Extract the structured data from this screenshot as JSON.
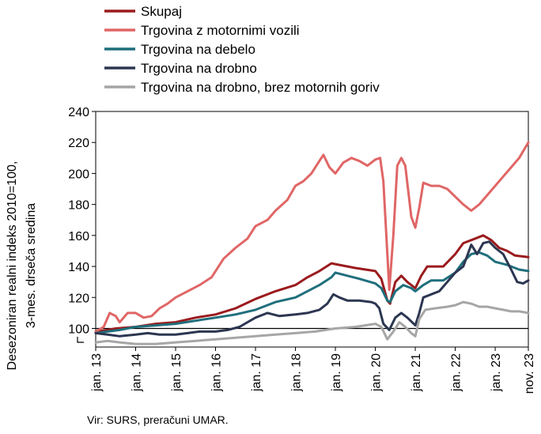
{
  "source_note": "Vir: SURS, preračuni UMAR.",
  "chart_data": {
    "type": "line",
    "ylabel_lines": [
      "Desezoniran realni indeks 2010=100,",
      "3-mes. drseča sredina"
    ],
    "ylim": [
      88,
      240
    ],
    "yticks": [
      100,
      120,
      140,
      160,
      180,
      200,
      220,
      240
    ],
    "baseline": 100,
    "xlim": [
      2013.0,
      2023.83
    ],
    "xticks": [
      {
        "x": 2013.0,
        "label": "jan. 13"
      },
      {
        "x": 2014.0,
        "label": "jan. 14"
      },
      {
        "x": 2015.0,
        "label": "jan. 15"
      },
      {
        "x": 2016.0,
        "label": "jan. 16"
      },
      {
        "x": 2017.0,
        "label": "jan. 17"
      },
      {
        "x": 2018.0,
        "label": "jan. 18"
      },
      {
        "x": 2019.0,
        "label": "jan. 19"
      },
      {
        "x": 2020.0,
        "label": "jan. 20"
      },
      {
        "x": 2021.0,
        "label": "jan. 21"
      },
      {
        "x": 2022.0,
        "label": "jan. 22"
      },
      {
        "x": 2023.0,
        "label": "jan. 23"
      },
      {
        "x": 2023.83,
        "label": "nov. 23"
      }
    ],
    "legend_position": "top-left",
    "grid": false,
    "series": [
      {
        "name": "Skupaj",
        "color": "#9b1b1e",
        "width": 3,
        "points": [
          [
            2013.0,
            98
          ],
          [
            2013.3,
            99
          ],
          [
            2013.5,
            100
          ],
          [
            2014.0,
            101
          ],
          [
            2014.5,
            103
          ],
          [
            2015.0,
            104
          ],
          [
            2015.5,
            107
          ],
          [
            2016.0,
            109
          ],
          [
            2016.5,
            113
          ],
          [
            2017.0,
            119
          ],
          [
            2017.5,
            124
          ],
          [
            2018.0,
            128
          ],
          [
            2018.3,
            133
          ],
          [
            2018.6,
            137
          ],
          [
            2018.9,
            142
          ],
          [
            2019.1,
            141
          ],
          [
            2019.5,
            139
          ],
          [
            2020.0,
            137
          ],
          [
            2020.15,
            132
          ],
          [
            2020.3,
            118
          ],
          [
            2020.37,
            116
          ],
          [
            2020.5,
            130
          ],
          [
            2020.65,
            134
          ],
          [
            2020.8,
            130
          ],
          [
            2021.0,
            126
          ],
          [
            2021.15,
            134
          ],
          [
            2021.3,
            140
          ],
          [
            2021.7,
            140
          ],
          [
            2022.0,
            148
          ],
          [
            2022.2,
            155
          ],
          [
            2022.5,
            158
          ],
          [
            2022.7,
            160
          ],
          [
            2022.9,
            157
          ],
          [
            2023.1,
            152
          ],
          [
            2023.3,
            150
          ],
          [
            2023.5,
            147
          ],
          [
            2023.83,
            146
          ]
        ]
      },
      {
        "name": "Trgovina z motornimi vozili",
        "color": "#e06666",
        "width": 3,
        "points": [
          [
            2013.0,
            98
          ],
          [
            2013.2,
            101
          ],
          [
            2013.35,
            110
          ],
          [
            2013.5,
            108
          ],
          [
            2013.6,
            104
          ],
          [
            2013.8,
            110
          ],
          [
            2014.0,
            110
          ],
          [
            2014.2,
            107
          ],
          [
            2014.4,
            108
          ],
          [
            2014.6,
            113
          ],
          [
            2014.8,
            116
          ],
          [
            2015.0,
            120
          ],
          [
            2015.3,
            124
          ],
          [
            2015.6,
            128
          ],
          [
            2015.9,
            133
          ],
          [
            2016.2,
            145
          ],
          [
            2016.5,
            152
          ],
          [
            2016.8,
            158
          ],
          [
            2017.0,
            166
          ],
          [
            2017.3,
            170
          ],
          [
            2017.5,
            176
          ],
          [
            2017.8,
            183
          ],
          [
            2018.0,
            192
          ],
          [
            2018.2,
            195
          ],
          [
            2018.4,
            200
          ],
          [
            2018.6,
            208
          ],
          [
            2018.7,
            212
          ],
          [
            2018.85,
            204
          ],
          [
            2019.0,
            200
          ],
          [
            2019.2,
            207
          ],
          [
            2019.4,
            210
          ],
          [
            2019.6,
            208
          ],
          [
            2019.8,
            205
          ],
          [
            2020.0,
            209
          ],
          [
            2020.12,
            210
          ],
          [
            2020.2,
            195
          ],
          [
            2020.35,
            125
          ],
          [
            2020.45,
            160
          ],
          [
            2020.55,
            205
          ],
          [
            2020.65,
            210
          ],
          [
            2020.75,
            205
          ],
          [
            2020.9,
            172
          ],
          [
            2021.0,
            165
          ],
          [
            2021.1,
            178
          ],
          [
            2021.2,
            194
          ],
          [
            2021.4,
            192
          ],
          [
            2021.6,
            192
          ],
          [
            2021.8,
            190
          ],
          [
            2022.0,
            185
          ],
          [
            2022.2,
            180
          ],
          [
            2022.4,
            176
          ],
          [
            2022.6,
            180
          ],
          [
            2022.8,
            186
          ],
          [
            2023.0,
            192
          ],
          [
            2023.2,
            198
          ],
          [
            2023.4,
            204
          ],
          [
            2023.6,
            210
          ],
          [
            2023.83,
            220
          ]
        ]
      },
      {
        "name": "Trgovina na debelo",
        "color": "#1f6f7c",
        "width": 3,
        "points": [
          [
            2013.0,
            97
          ],
          [
            2013.3,
            98
          ],
          [
            2013.6,
            99
          ],
          [
            2014.0,
            101
          ],
          [
            2014.5,
            102
          ],
          [
            2015.0,
            103
          ],
          [
            2015.5,
            105
          ],
          [
            2016.0,
            107
          ],
          [
            2016.5,
            109
          ],
          [
            2017.0,
            112
          ],
          [
            2017.5,
            117
          ],
          [
            2018.0,
            120
          ],
          [
            2018.3,
            124
          ],
          [
            2018.6,
            128
          ],
          [
            2018.9,
            133
          ],
          [
            2019.0,
            136
          ],
          [
            2019.3,
            134
          ],
          [
            2019.6,
            132
          ],
          [
            2020.0,
            129
          ],
          [
            2020.15,
            126
          ],
          [
            2020.3,
            118
          ],
          [
            2020.37,
            117
          ],
          [
            2020.5,
            124
          ],
          [
            2020.7,
            128
          ],
          [
            2020.9,
            126
          ],
          [
            2021.0,
            124
          ],
          [
            2021.2,
            128
          ],
          [
            2021.4,
            131
          ],
          [
            2021.7,
            131
          ],
          [
            2022.0,
            136
          ],
          [
            2022.2,
            143
          ],
          [
            2022.4,
            148
          ],
          [
            2022.6,
            149
          ],
          [
            2022.8,
            147
          ],
          [
            2023.0,
            143
          ],
          [
            2023.3,
            141
          ],
          [
            2023.6,
            138
          ],
          [
            2023.83,
            137
          ]
        ]
      },
      {
        "name": "Trgovina na drobno",
        "color": "#2c3651",
        "width": 3,
        "points": [
          [
            2013.0,
            97
          ],
          [
            2013.3,
            96
          ],
          [
            2013.6,
            95
          ],
          [
            2014.0,
            96
          ],
          [
            2014.3,
            97
          ],
          [
            2014.6,
            96
          ],
          [
            2015.0,
            96
          ],
          [
            2015.3,
            97
          ],
          [
            2015.6,
            98
          ],
          [
            2016.0,
            98
          ],
          [
            2016.3,
            99
          ],
          [
            2016.6,
            101
          ],
          [
            2017.0,
            107
          ],
          [
            2017.3,
            110
          ],
          [
            2017.6,
            108
          ],
          [
            2018.0,
            109
          ],
          [
            2018.3,
            110
          ],
          [
            2018.6,
            112
          ],
          [
            2018.8,
            116
          ],
          [
            2018.95,
            122
          ],
          [
            2019.1,
            120
          ],
          [
            2019.3,
            118
          ],
          [
            2019.6,
            118
          ],
          [
            2019.9,
            117
          ],
          [
            2020.0,
            116
          ],
          [
            2020.1,
            113
          ],
          [
            2020.2,
            103
          ],
          [
            2020.35,
            99
          ],
          [
            2020.5,
            107
          ],
          [
            2020.65,
            110
          ],
          [
            2020.8,
            107
          ],
          [
            2021.0,
            102
          ],
          [
            2021.1,
            110
          ],
          [
            2021.2,
            120
          ],
          [
            2021.4,
            122
          ],
          [
            2021.6,
            124
          ],
          [
            2021.8,
            130
          ],
          [
            2022.0,
            136
          ],
          [
            2022.2,
            140
          ],
          [
            2022.4,
            154
          ],
          [
            2022.55,
            148
          ],
          [
            2022.7,
            155
          ],
          [
            2022.85,
            156
          ],
          [
            2023.0,
            152
          ],
          [
            2023.2,
            148
          ],
          [
            2023.4,
            138
          ],
          [
            2023.55,
            130
          ],
          [
            2023.7,
            129
          ],
          [
            2023.83,
            131
          ]
        ]
      },
      {
        "name": "Trgovina na drobno, brez motornih goriv",
        "color": "#a6a6a6",
        "width": 3,
        "points": [
          [
            2013.0,
            91
          ],
          [
            2013.3,
            92
          ],
          [
            2013.6,
            91
          ],
          [
            2014.0,
            90
          ],
          [
            2014.5,
            90
          ],
          [
            2015.0,
            91
          ],
          [
            2015.5,
            92
          ],
          [
            2016.0,
            93
          ],
          [
            2016.5,
            94
          ],
          [
            2017.0,
            95
          ],
          [
            2017.5,
            96
          ],
          [
            2018.0,
            97
          ],
          [
            2018.5,
            98
          ],
          [
            2019.0,
            100
          ],
          [
            2019.5,
            101
          ],
          [
            2020.0,
            103
          ],
          [
            2020.15,
            101
          ],
          [
            2020.3,
            93
          ],
          [
            2020.45,
            98
          ],
          [
            2020.6,
            104
          ],
          [
            2020.75,
            101
          ],
          [
            2020.9,
            97
          ],
          [
            2021.0,
            95
          ],
          [
            2021.1,
            106
          ],
          [
            2021.25,
            112
          ],
          [
            2021.5,
            113
          ],
          [
            2021.8,
            114
          ],
          [
            2022.0,
            115
          ],
          [
            2022.2,
            117
          ],
          [
            2022.4,
            116
          ],
          [
            2022.6,
            114
          ],
          [
            2022.8,
            114
          ],
          [
            2023.0,
            113
          ],
          [
            2023.2,
            112
          ],
          [
            2023.4,
            111
          ],
          [
            2023.6,
            111
          ],
          [
            2023.83,
            110
          ]
        ]
      }
    ]
  }
}
